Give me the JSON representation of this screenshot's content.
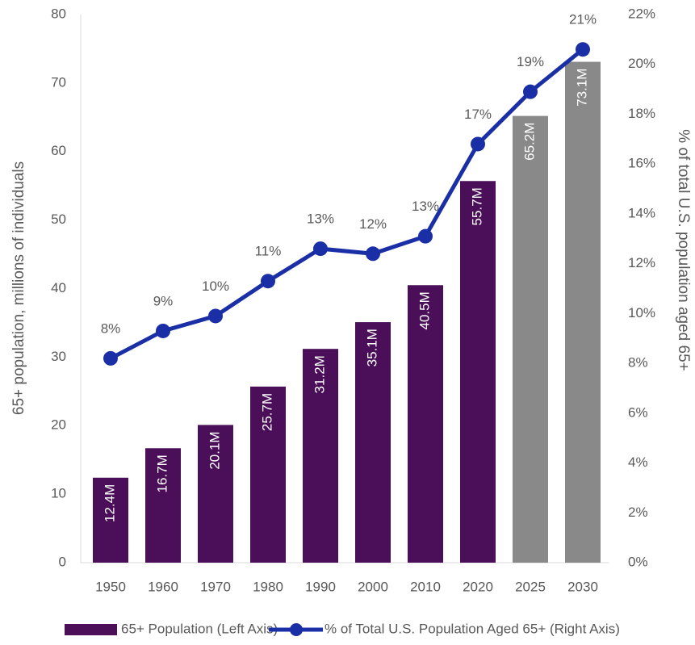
{
  "chart_data": {
    "type": "bar",
    "categories": [
      "1950",
      "1960",
      "1970",
      "1980",
      "1990",
      "2000",
      "2010",
      "2020",
      "2025",
      "2030"
    ],
    "series": [
      {
        "name": "65+ Population (Left Axis)",
        "type": "bar",
        "color": "#4b0f5a",
        "colors": [
          "#4b0f5a",
          "#4b0f5a",
          "#4b0f5a",
          "#4b0f5a",
          "#4b0f5a",
          "#4b0f5a",
          "#4b0f5a",
          "#4b0f5a",
          "#898989",
          "#898989"
        ],
        "values": [
          12.4,
          16.7,
          20.1,
          25.7,
          31.2,
          35.1,
          40.5,
          55.7,
          65.2,
          73.1
        ],
        "value_labels": [
          "12.4M",
          "16.7M",
          "20.1M",
          "25.7M",
          "31.2M",
          "35.1M",
          "40.5M",
          "55.7M",
          "65.2M",
          "73.1M"
        ]
      },
      {
        "name": "% of Total U.S. Population Aged 65+ (Right Axis)",
        "type": "line",
        "axis": "y2",
        "color": "#1a2ea6",
        "values": [
          8.2,
          9.3,
          9.9,
          11.3,
          12.6,
          12.4,
          13.1,
          16.8,
          18.9,
          20.6
        ],
        "value_labels": [
          "8%",
          "9%",
          "10%",
          "11%",
          "13%",
          "12%",
          "13%",
          "17%",
          "19%",
          "21%"
        ]
      }
    ],
    "ylabel": "65+ population, millions of individuals",
    "y2label": "% of total U.S. population aged 65+",
    "ylim": [
      0,
      80
    ],
    "yticks": [
      0,
      10,
      20,
      30,
      40,
      50,
      60,
      70,
      80
    ],
    "y2lim": [
      0,
      22
    ],
    "y2ticks": [
      {
        "value": 0,
        "label": "0%"
      },
      {
        "value": 2,
        "label": "2%"
      },
      {
        "value": 4,
        "label": "4%"
      },
      {
        "value": 6,
        "label": "6%"
      },
      {
        "value": 8,
        "label": "8%"
      },
      {
        "value": 10,
        "label": "10%"
      },
      {
        "value": 12,
        "label": "12%"
      },
      {
        "value": 14,
        "label": "14%"
      },
      {
        "value": 16,
        "label": "16%"
      },
      {
        "value": 18,
        "label": "18%"
      },
      {
        "value": 20,
        "label": "20%"
      },
      {
        "value": 22,
        "label": "22%"
      }
    ],
    "grid": false,
    "legend": "bottom"
  }
}
